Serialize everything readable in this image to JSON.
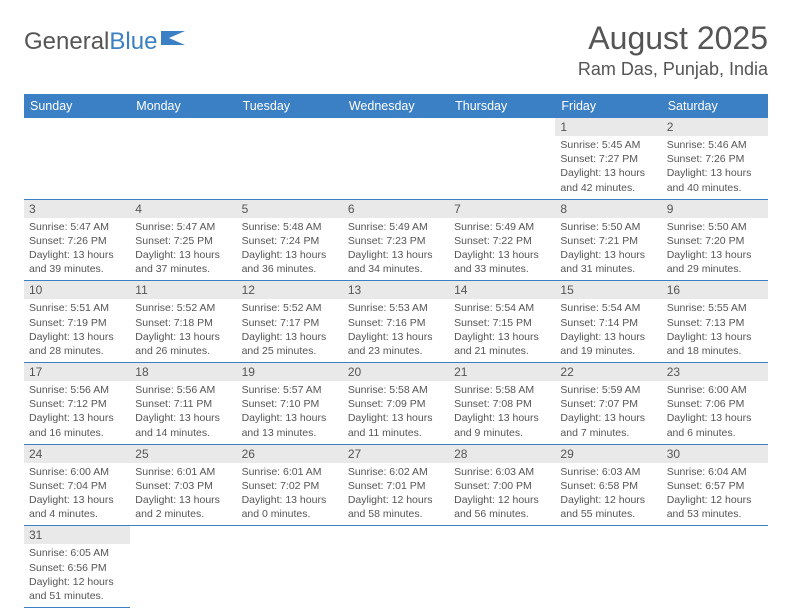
{
  "logo": {
    "text1": "General",
    "text2": "Blue"
  },
  "header": {
    "month": "August 2025",
    "location": "Ram Das, Punjab, India"
  },
  "colors": {
    "accent": "#3b7fc4",
    "dayband": "#e9e9e9",
    "text": "#555555",
    "bg": "#ffffff"
  },
  "dayNames": [
    "Sunday",
    "Monday",
    "Tuesday",
    "Wednesday",
    "Thursday",
    "Friday",
    "Saturday"
  ],
  "layout": {
    "startWeekday": 5,
    "daysInMonth": 31,
    "cellHeight": 78
  },
  "days": [
    {
      "n": 1,
      "rise": "5:45 AM",
      "set": "7:27 PM",
      "dl": "13 hours and 42 minutes."
    },
    {
      "n": 2,
      "rise": "5:46 AM",
      "set": "7:26 PM",
      "dl": "13 hours and 40 minutes."
    },
    {
      "n": 3,
      "rise": "5:47 AM",
      "set": "7:26 PM",
      "dl": "13 hours and 39 minutes."
    },
    {
      "n": 4,
      "rise": "5:47 AM",
      "set": "7:25 PM",
      "dl": "13 hours and 37 minutes."
    },
    {
      "n": 5,
      "rise": "5:48 AM",
      "set": "7:24 PM",
      "dl": "13 hours and 36 minutes."
    },
    {
      "n": 6,
      "rise": "5:49 AM",
      "set": "7:23 PM",
      "dl": "13 hours and 34 minutes."
    },
    {
      "n": 7,
      "rise": "5:49 AM",
      "set": "7:22 PM",
      "dl": "13 hours and 33 minutes."
    },
    {
      "n": 8,
      "rise": "5:50 AM",
      "set": "7:21 PM",
      "dl": "13 hours and 31 minutes."
    },
    {
      "n": 9,
      "rise": "5:50 AM",
      "set": "7:20 PM",
      "dl": "13 hours and 29 minutes."
    },
    {
      "n": 10,
      "rise": "5:51 AM",
      "set": "7:19 PM",
      "dl": "13 hours and 28 minutes."
    },
    {
      "n": 11,
      "rise": "5:52 AM",
      "set": "7:18 PM",
      "dl": "13 hours and 26 minutes."
    },
    {
      "n": 12,
      "rise": "5:52 AM",
      "set": "7:17 PM",
      "dl": "13 hours and 25 minutes."
    },
    {
      "n": 13,
      "rise": "5:53 AM",
      "set": "7:16 PM",
      "dl": "13 hours and 23 minutes."
    },
    {
      "n": 14,
      "rise": "5:54 AM",
      "set": "7:15 PM",
      "dl": "13 hours and 21 minutes."
    },
    {
      "n": 15,
      "rise": "5:54 AM",
      "set": "7:14 PM",
      "dl": "13 hours and 19 minutes."
    },
    {
      "n": 16,
      "rise": "5:55 AM",
      "set": "7:13 PM",
      "dl": "13 hours and 18 minutes."
    },
    {
      "n": 17,
      "rise": "5:56 AM",
      "set": "7:12 PM",
      "dl": "13 hours and 16 minutes."
    },
    {
      "n": 18,
      "rise": "5:56 AM",
      "set": "7:11 PM",
      "dl": "13 hours and 14 minutes."
    },
    {
      "n": 19,
      "rise": "5:57 AM",
      "set": "7:10 PM",
      "dl": "13 hours and 13 minutes."
    },
    {
      "n": 20,
      "rise": "5:58 AM",
      "set": "7:09 PM",
      "dl": "13 hours and 11 minutes."
    },
    {
      "n": 21,
      "rise": "5:58 AM",
      "set": "7:08 PM",
      "dl": "13 hours and 9 minutes."
    },
    {
      "n": 22,
      "rise": "5:59 AM",
      "set": "7:07 PM",
      "dl": "13 hours and 7 minutes."
    },
    {
      "n": 23,
      "rise": "6:00 AM",
      "set": "7:06 PM",
      "dl": "13 hours and 6 minutes."
    },
    {
      "n": 24,
      "rise": "6:00 AM",
      "set": "7:04 PM",
      "dl": "13 hours and 4 minutes."
    },
    {
      "n": 25,
      "rise": "6:01 AM",
      "set": "7:03 PM",
      "dl": "13 hours and 2 minutes."
    },
    {
      "n": 26,
      "rise": "6:01 AM",
      "set": "7:02 PM",
      "dl": "13 hours and 0 minutes."
    },
    {
      "n": 27,
      "rise": "6:02 AM",
      "set": "7:01 PM",
      "dl": "12 hours and 58 minutes."
    },
    {
      "n": 28,
      "rise": "6:03 AM",
      "set": "7:00 PM",
      "dl": "12 hours and 56 minutes."
    },
    {
      "n": 29,
      "rise": "6:03 AM",
      "set": "6:58 PM",
      "dl": "12 hours and 55 minutes."
    },
    {
      "n": 30,
      "rise": "6:04 AM",
      "set": "6:57 PM",
      "dl": "12 hours and 53 minutes."
    },
    {
      "n": 31,
      "rise": "6:05 AM",
      "set": "6:56 PM",
      "dl": "12 hours and 51 minutes."
    }
  ],
  "labels": {
    "sunrise": "Sunrise:",
    "sunset": "Sunset:",
    "daylight": "Daylight:"
  }
}
